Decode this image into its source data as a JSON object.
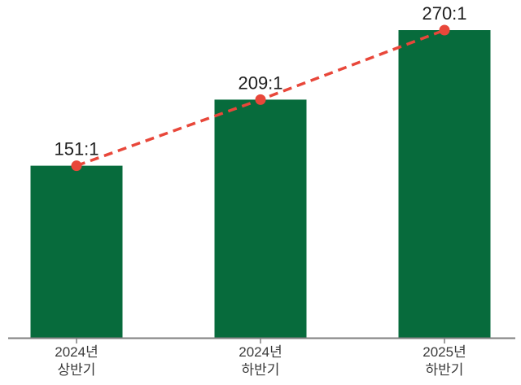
{
  "chart_data": {
    "type": "bar",
    "title": "",
    "xlabel": "",
    "ylabel": "",
    "categories": [
      [
        "2024년",
        "상반기"
      ],
      [
        "2024년",
        "하반기"
      ],
      [
        "2025년",
        "하반기"
      ]
    ],
    "values": [
      151,
      209,
      270
    ],
    "value_labels": [
      "151:1",
      "209:1",
      "270:1"
    ],
    "overlay_line": {
      "type": "line",
      "style": "dashed",
      "markers": "circle",
      "values": [
        151,
        209,
        270
      ]
    },
    "ylim": [
      0,
      296
    ],
    "grid": false,
    "legend": false
  },
  "colors": {
    "background": "#ffffff",
    "bar": "#076B3C",
    "trend_line": "#E8473A",
    "marker": "#E8473A",
    "axis": "#7F7F7F",
    "value_label": "#1F1F1F",
    "category_label": "#3A3A3A"
  }
}
